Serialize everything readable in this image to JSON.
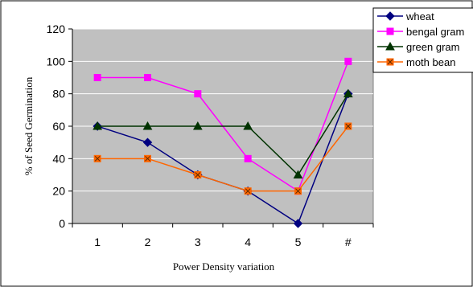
{
  "chart_data": {
    "type": "line",
    "categories": [
      "1",
      "2",
      "3",
      "4",
      "5",
      "#"
    ],
    "xlabel": "Power Density variation",
    "ylabel": "% of Seed Germination",
    "ylim": [
      0,
      120
    ],
    "yticks": [
      0,
      20,
      40,
      60,
      80,
      100,
      120
    ],
    "grid": "horizontal",
    "plot_background": "#c0c0c0",
    "legend_position": "top-right",
    "series": [
      {
        "name": "wheat",
        "values": [
          60,
          50,
          30,
          20,
          0,
          80
        ],
        "color": "#000080",
        "marker": "diamond"
      },
      {
        "name": "bengal gram",
        "values": [
          90,
          90,
          80,
          40,
          20,
          100
        ],
        "color": "#ff00ff",
        "marker": "square"
      },
      {
        "name": "green gram",
        "values": [
          60,
          60,
          60,
          60,
          30,
          80
        ],
        "color": "#003300",
        "marker": "triangle"
      },
      {
        "name": "moth bean",
        "values": [
          40,
          40,
          30,
          20,
          20,
          60
        ],
        "color": "#ff6600",
        "marker": "square-x"
      }
    ]
  }
}
